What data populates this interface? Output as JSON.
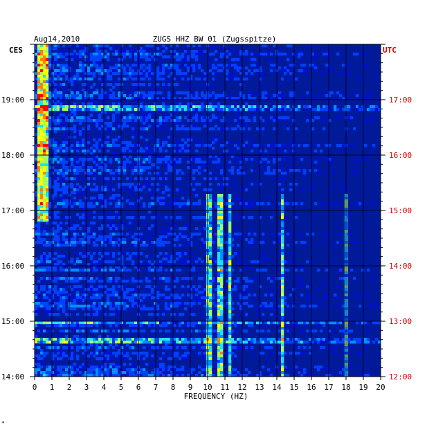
{
  "chart_data": {
    "type": "heatmap",
    "date": "Aug14,2010",
    "title": "ZUGS HHZ BW 01 (Zugsspitze)",
    "xlabel": "FREQUENCY (HZ)",
    "left_axis_label": "CES",
    "right_axis_label": "UTC",
    "xlim": [
      0,
      20
    ],
    "x_ticks": [
      "0",
      "1",
      "2",
      "3",
      "4",
      "5",
      "6",
      "7",
      "8",
      "9",
      "10",
      "11",
      "12",
      "13",
      "14",
      "15",
      "16",
      "17",
      "18",
      "19",
      "20"
    ],
    "time_range_hours_ces": [
      14,
      20
    ],
    "left_ticks": [
      {
        "hour": 19,
        "label": "19:00"
      },
      {
        "hour": 18,
        "label": "18:00"
      },
      {
        "hour": 17,
        "label": "17:00"
      },
      {
        "hour": 16,
        "label": "16:00"
      },
      {
        "hour": 15,
        "label": "15:00"
      },
      {
        "hour": 14,
        "label": "14:00"
      }
    ],
    "right_ticks": [
      {
        "hour": 19,
        "label": "17:00"
      },
      {
        "hour": 18,
        "label": "16:00"
      },
      {
        "hour": 17,
        "label": "15:00"
      },
      {
        "hour": 16,
        "label": "14:00"
      },
      {
        "hour": 15,
        "label": "13:00"
      },
      {
        "hour": 14,
        "label": "12:00"
      }
    ],
    "colormap": [
      "#00008c",
      "#0010d0",
      "#0040ff",
      "#0090ff",
      "#20e0ff",
      "#a0ff60",
      "#ffff00",
      "#ff8000",
      "#ff0000"
    ],
    "background_color": "#001a9a",
    "features": {
      "low_freq_energy_hz": [
        0.2,
        0.8
      ],
      "persistent_lines_hz": [
        10.1,
        10.7,
        11.3,
        14.3,
        18.0
      ],
      "line_active_time_ces": [
        14.0,
        17.3
      ],
      "dark_gap_rows_ces": [
        16.3,
        15.85,
        15.05
      ],
      "bright_rows_ces": [
        18.85,
        15.0,
        14.65
      ]
    }
  },
  "footer_mark": "*"
}
